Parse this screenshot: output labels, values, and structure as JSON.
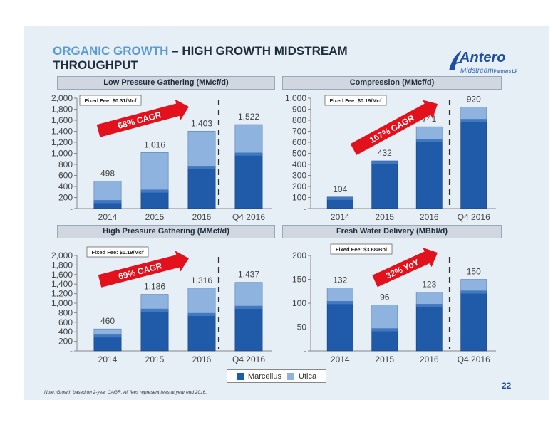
{
  "title": {
    "accent": "ORGANIC GROWTH",
    "rest": " – HIGH GROWTH MIDSTREAM",
    "line2": "THROUGHPUT"
  },
  "logo": {
    "name": "Antero",
    "sub": "Midstream",
    "sub_small": "Partners LP"
  },
  "colors": {
    "marcellus": "#1f5ba8",
    "utica": "#8fb3df",
    "arrow": "#e3111b",
    "background": "#e6eef6"
  },
  "legend": {
    "marcellus": "Marcellus",
    "utica": "Utica"
  },
  "note": "Note:  Growth based on 2-year CAGR.  All fees represent fees at year end 2016.",
  "page_number": "22",
  "chart_data": [
    {
      "type": "bar",
      "title": "Low Pressure Gathering (MMcf/d)",
      "fee": "Fixed Fee: $0.31/Mcf",
      "growth": "68% CAGR",
      "categories": [
        "2014",
        "2015",
        "2016",
        "Q4 2016"
      ],
      "ylim": [
        0,
        2000
      ],
      "yticks": [
        "-",
        "200",
        "400",
        "600",
        "800",
        "1,000",
        "1,200",
        "1,400",
        "1,600",
        "1,800",
        "2,000"
      ],
      "totals": [
        "498",
        "1,016",
        "1,403",
        "1,522"
      ],
      "series": [
        {
          "name": "Marcellus",
          "values": [
            150,
            340,
            770,
            1010
          ]
        },
        {
          "name": "Utica",
          "values": [
            348,
            676,
            633,
            512
          ]
        }
      ]
    },
    {
      "type": "bar",
      "title": "Compression (MMcf/d)",
      "fee": "Fixed Fee: $0.19/Mcf",
      "growth": "167% CAGR",
      "categories": [
        "2014",
        "2015",
        "2016",
        "Q4 2016"
      ],
      "ylim": [
        0,
        1000
      ],
      "yticks": [
        "-",
        "100",
        "200",
        "300",
        "400",
        "500",
        "600",
        "700",
        "800",
        "900",
        "1,000"
      ],
      "totals": [
        "104",
        "432",
        "741",
        "920"
      ],
      "series": [
        {
          "name": "Marcellus",
          "values": [
            104,
            432,
            630,
            810
          ]
        },
        {
          "name": "Utica",
          "values": [
            0,
            0,
            111,
            110
          ]
        }
      ]
    },
    {
      "type": "bar",
      "title": "High Pressure Gathering (MMcf/d)",
      "fee": "Fixed Fee: $0.19/Mcf",
      "growth": "69% CAGR",
      "categories": [
        "2014",
        "2015",
        "2016",
        "Q4 2016"
      ],
      "ylim": [
        0,
        2000
      ],
      "yticks": [
        "-",
        "200",
        "400",
        "600",
        "800",
        "1,000",
        "1,200",
        "1,400",
        "1,600",
        "1,800",
        "2,000"
      ],
      "totals": [
        "460",
        "1,186",
        "1,316",
        "1,437"
      ],
      "series": [
        {
          "name": "Marcellus",
          "values": [
            340,
            880,
            790,
            940
          ]
        },
        {
          "name": "Utica",
          "values": [
            120,
            306,
            526,
            497
          ]
        }
      ]
    },
    {
      "type": "bar",
      "title": "Fresh Water Delivery (MBbl/d)",
      "fee": "Fixed Fee: $3.68/Bbl",
      "growth": "32% YoY",
      "categories": [
        "2014",
        "2015",
        "2016",
        "Q4 2016"
      ],
      "ylim": [
        0,
        200
      ],
      "yticks": [
        "-",
        "50",
        "100",
        "150",
        "200"
      ],
      "totals": [
        "132",
        "96",
        "123",
        "150"
      ],
      "series": [
        {
          "name": "Marcellus",
          "values": [
            104,
            47,
            98,
            126
          ]
        },
        {
          "name": "Utica",
          "values": [
            28,
            49,
            25,
            24
          ]
        }
      ]
    }
  ]
}
